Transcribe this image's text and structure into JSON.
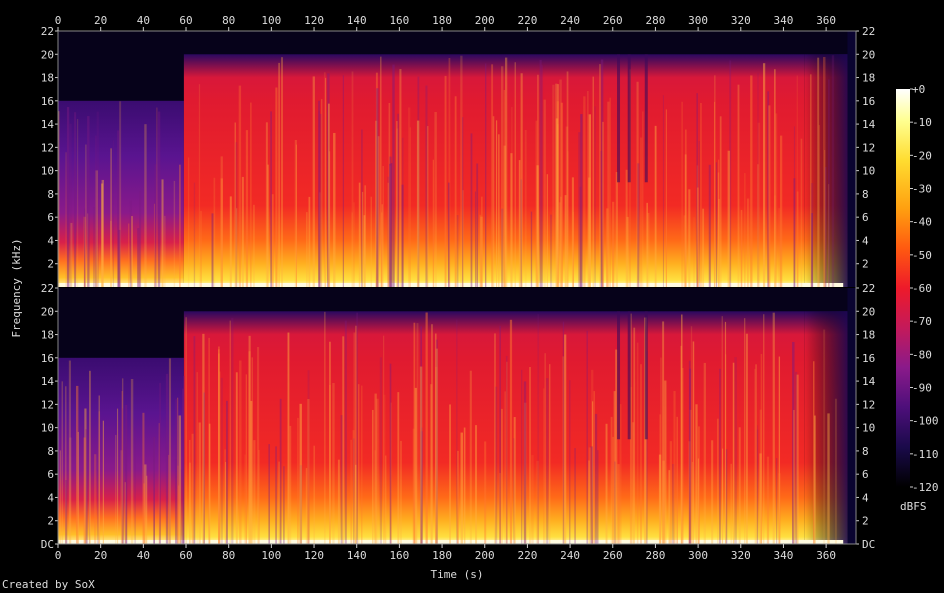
{
  "chart_data": {
    "type": "heatmap",
    "title": "",
    "xlabel": "Time (s)",
    "ylabel": "Frequency (kHz)",
    "x_ticks": [
      "0",
      "20",
      "40",
      "60",
      "80",
      "100",
      "120",
      "140",
      "160",
      "180",
      "200",
      "220",
      "240",
      "260",
      "280",
      "300",
      "320",
      "340",
      "360"
    ],
    "xlim": [
      0,
      374
    ],
    "channels": [
      {
        "y_ticks": [
          "22",
          "20",
          "18",
          "16",
          "14",
          "12",
          "10",
          "8",
          "6",
          "4",
          "2"
        ],
        "ylim": [
          0,
          22
        ]
      },
      {
        "y_ticks": [
          "22",
          "20",
          "18",
          "16",
          "14",
          "12",
          "10",
          "8",
          "6",
          "4",
          "2",
          "DC"
        ],
        "ylim": [
          0,
          22
        ]
      }
    ],
    "colorbar": {
      "unit": "dBFS",
      "ticks": [
        "+0",
        "-10",
        "-20",
        "-30",
        "-40",
        "-50",
        "-60",
        "-70",
        "-80",
        "-90",
        "-100",
        "-110",
        "-120"
      ],
      "range": [
        -120,
        0
      ],
      "colors": [
        "#000000",
        "#1a0a4a",
        "#4d0f7a",
        "#8a1a8a",
        "#c41a5a",
        "#ee1a2a",
        "#ff5a10",
        "#ffa010",
        "#ffdc30",
        "#ffff90",
        "#ffffff"
      ]
    },
    "regions": [
      {
        "time": [
          0,
          59
        ],
        "cutoff_khz": 16,
        "level": "low"
      },
      {
        "time": [
          59,
          350
        ],
        "cutoff_khz": 20,
        "level": "high"
      },
      {
        "time": [
          350,
          370
        ],
        "cutoff_khz": 20,
        "level": "fading"
      }
    ]
  },
  "footer": {
    "credit": "Created by SoX"
  }
}
